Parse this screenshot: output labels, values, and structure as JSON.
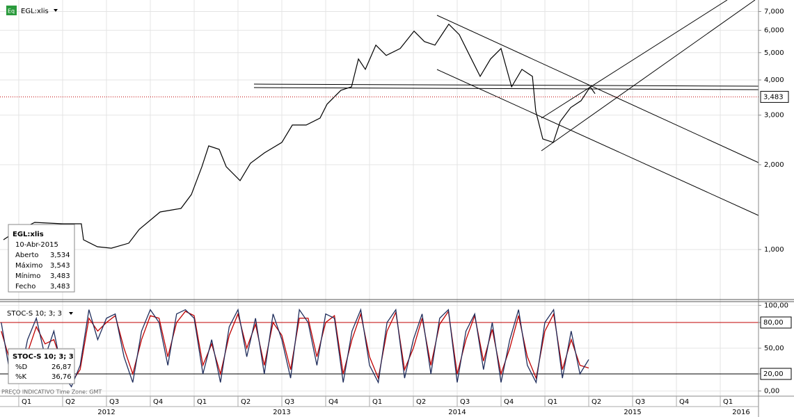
{
  "chart_data": [
    {
      "type": "price",
      "symbol": "EGL:xlis",
      "log_scale": true,
      "color": "#000000",
      "xlim": [
        2011.893,
        2016.218
      ],
      "ylim": [
        668,
        7690
      ],
      "yticks": [
        {
          "value": 1000,
          "label": "1,000"
        },
        {
          "value": 2000,
          "label": "2,000"
        },
        {
          "value": 3000,
          "label": "3,000"
        },
        {
          "value": 4000,
          "label": "4,000"
        },
        {
          "value": 5000,
          "label": "5,000"
        },
        {
          "value": 6000,
          "label": "6,000"
        },
        {
          "value": 7000,
          "label": "7,000"
        }
      ],
      "x": [
        2011.913,
        2011.972,
        2012.091,
        2012.25,
        2012.357,
        2012.369,
        2012.448,
        2012.528,
        2012.627,
        2012.687,
        2012.806,
        2012.925,
        2012.984,
        2013.044,
        2013.083,
        2013.143,
        2013.183,
        2013.262,
        2013.321,
        2013.401,
        2013.5,
        2013.56,
        2013.639,
        2013.718,
        2013.758,
        2013.837,
        2013.897,
        2013.937,
        2013.976,
        2014.036,
        2014.095,
        2014.175,
        2014.254,
        2014.313,
        2014.373,
        2014.452,
        2014.512,
        2014.571,
        2014.631,
        2014.69,
        2014.75,
        2014.81,
        2014.869,
        2014.929,
        2014.948,
        2014.988,
        2015.048,
        2015.087,
        2015.147,
        2015.206,
        2015.258,
        2015.286
      ],
      "series": [
        {
          "name": "EGL:xlis",
          "color": "#000000",
          "values": [
            1083,
            1146,
            1248,
            1234,
            1234,
            1083,
            1023,
            1011,
            1053,
            1179,
            1359,
            1399,
            1567,
            1967,
            2333,
            2268,
            1967,
            1756,
            2024,
            2204,
            2400,
            2767,
            2767,
            2929,
            3281,
            3676,
            3782,
            4748,
            4361,
            5319,
            4886,
            5171,
            5963,
            5474,
            5319,
            6310,
            5794,
            4886,
            4119,
            4748,
            5171,
            3782,
            4361,
            4119,
            3100,
            2470,
            2400,
            2847,
            3190,
            3376,
            3782,
            3574
          ]
        }
      ],
      "last_price": {
        "value": 3483,
        "label": "3,483"
      },
      "info": {
        "title": "EGL:xlis",
        "date": "10-Abr-2015",
        "rows": [
          [
            "Aberto",
            "3,534"
          ],
          [
            "Máximo",
            "3,543"
          ],
          [
            "Mínimo",
            "3,483"
          ],
          [
            "Fecho",
            "3,483"
          ]
        ]
      }
    },
    {
      "type": "stochastic",
      "title": "STOC-S 10; 3; 3",
      "footer": "PREÇO INDICATIVO   Time Zone: GMT",
      "xlim": [
        2011.893,
        2016.218
      ],
      "ylim": [
        -6,
        106
      ],
      "yticks": [
        {
          "value": 0,
          "label": "0,00"
        },
        {
          "value": 20,
          "label": "20,00"
        },
        {
          "value": 50,
          "label": "50,00"
        },
        {
          "value": 80,
          "label": "80,00"
        },
        {
          "value": 100,
          "label": "100,00"
        }
      ],
      "levels": [
        {
          "value": 80,
          "label": "80,00",
          "color": "#c00000"
        },
        {
          "value": 20,
          "label": "20,00",
          "color": "#000000"
        }
      ],
      "x": [
        2011.9,
        2011.95,
        2012.0,
        2012.05,
        2012.1,
        2012.15,
        2012.2,
        2012.25,
        2012.3,
        2012.35,
        2012.4,
        2012.45,
        2012.5,
        2012.55,
        2012.6,
        2012.65,
        2012.7,
        2012.75,
        2012.8,
        2012.85,
        2012.9,
        2012.95,
        2013.0,
        2013.05,
        2013.1,
        2013.15,
        2013.2,
        2013.25,
        2013.3,
        2013.35,
        2013.4,
        2013.45,
        2013.5,
        2013.55,
        2013.6,
        2013.65,
        2013.7,
        2013.75,
        2013.8,
        2013.85,
        2013.9,
        2013.95,
        2014.0,
        2014.05,
        2014.1,
        2014.15,
        2014.2,
        2014.25,
        2014.3,
        2014.35,
        2014.4,
        2014.45,
        2014.5,
        2014.55,
        2014.6,
        2014.65,
        2014.7,
        2014.75,
        2014.8,
        2014.85,
        2014.9,
        2014.95,
        2015.0,
        2015.05,
        2015.1,
        2015.15,
        2015.2,
        2015.25
      ],
      "series": [
        {
          "name": "%D",
          "color": "#c00000",
          "value_label": "26,87",
          "values": [
            70,
            35,
            15,
            45,
            75,
            55,
            60,
            30,
            10,
            25,
            85,
            70,
            80,
            88,
            50,
            20,
            60,
            88,
            85,
            40,
            80,
            93,
            88,
            30,
            55,
            20,
            65,
            90,
            50,
            78,
            30,
            80,
            65,
            25,
            85,
            85,
            40,
            80,
            88,
            20,
            60,
            90,
            40,
            15,
            70,
            92,
            25,
            50,
            85,
            30,
            78,
            93,
            20,
            60,
            88,
            35,
            72,
            20,
            50,
            88,
            40,
            15,
            70,
            90,
            25,
            60,
            30,
            26.87
          ]
        },
        {
          "name": "%K",
          "color": "#1f2d5c",
          "value_label": "36,76",
          "values": [
            80,
            20,
            10,
            60,
            85,
            40,
            70,
            20,
            5,
            30,
            95,
            60,
            85,
            90,
            40,
            10,
            70,
            95,
            80,
            30,
            90,
            95,
            85,
            20,
            60,
            10,
            75,
            95,
            40,
            85,
            20,
            90,
            60,
            15,
            95,
            80,
            30,
            90,
            85,
            10,
            70,
            95,
            30,
            10,
            80,
            95,
            15,
            60,
            90,
            20,
            85,
            95,
            10,
            70,
            90,
            25,
            80,
            10,
            60,
            95,
            30,
            10,
            80,
            95,
            15,
            70,
            20,
            36.76
          ]
        }
      ]
    },
    {
      "type": "time_axis",
      "xlim": [
        2011.893,
        2016.218
      ],
      "xticks": [
        {
          "value": 2012,
          "label": "Q1"
        },
        {
          "value": 2012.25,
          "label": "Q2"
        },
        {
          "value": 2012.5,
          "label": "Q3"
        },
        {
          "value": 2012.75,
          "label": "Q4"
        },
        {
          "value": 2013,
          "label": "Q1"
        },
        {
          "value": 2013.25,
          "label": "Q2"
        },
        {
          "value": 2013.5,
          "label": "Q3"
        },
        {
          "value": 2013.75,
          "label": "Q4"
        },
        {
          "value": 2014,
          "label": "Q1"
        },
        {
          "value": 2014.25,
          "label": "Q2"
        },
        {
          "value": 2014.5,
          "label": "Q3"
        },
        {
          "value": 2014.75,
          "label": "Q4"
        },
        {
          "value": 2015,
          "label": "Q1"
        },
        {
          "value": 2015.25,
          "label": "Q2"
        },
        {
          "value": 2015.5,
          "label": "Q3"
        },
        {
          "value": 2015.75,
          "label": "Q4"
        },
        {
          "value": 2016,
          "label": "Q1"
        }
      ],
      "years": [
        {
          "value": 2012.5,
          "label": "2012"
        },
        {
          "value": 2013.5,
          "label": "2013"
        },
        {
          "value": 2014.5,
          "label": "2014"
        },
        {
          "value": 2015.5,
          "label": "2015"
        },
        {
          "value": 2016.5,
          "label": "2016"
        }
      ]
    }
  ]
}
